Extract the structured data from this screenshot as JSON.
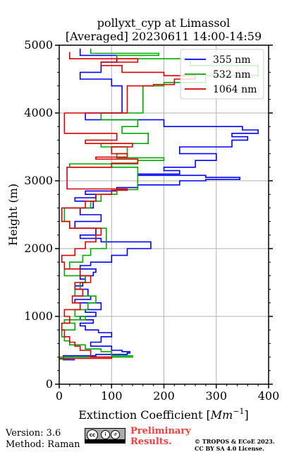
{
  "chart_data": {
    "type": "line",
    "title": "pollyxt_cyp at Limassol",
    "subtitle": "[Averaged] 20230611 14:00-14:59",
    "xlabel": "Extinction Coefficient",
    "xlabel_unit": "Mm",
    "xlabel_unit_exp": "−1",
    "ylabel": "Height (m)",
    "xlim": [
      0,
      400
    ],
    "ylim": [
      0,
      5000
    ],
    "xticks": [
      0,
      100,
      200,
      300,
      400
    ],
    "yticks": [
      0,
      1000,
      2000,
      3000,
      4000,
      5000
    ],
    "grid": true,
    "legend_position": "top-right",
    "series": [
      {
        "name": "355 nm",
        "color": "#0000ff",
        "x": [
          30,
          8,
          70,
          130,
          135,
          120,
          100,
          60,
          80,
          100,
          75,
          50,
          40,
          65,
          40,
          70,
          50,
          80,
          30,
          60,
          55,
          30,
          45,
          50,
          40,
          65,
          70,
          40,
          60,
          100,
          130,
          175,
          80,
          40,
          70,
          30,
          80,
          40,
          65,
          30,
          70,
          50,
          110,
          150,
          230,
          280,
          345,
          280,
          150,
          230,
          200,
          260,
          300,
          230,
          330,
          360,
          330,
          380,
          350,
          200,
          50,
          120,
          100,
          40,
          80,
          110,
          40
        ],
        "y": [
          360,
          420,
          440,
          460,
          480,
          500,
          560,
          620,
          700,
          760,
          800,
          860,
          900,
          950,
          1000,
          1060,
          1100,
          1200,
          1250,
          1300,
          1400,
          1450,
          1500,
          1550,
          1600,
          1650,
          1700,
          1750,
          1800,
          1900,
          2000,
          2100,
          2150,
          2200,
          2300,
          2400,
          2500,
          2600,
          2700,
          2750,
          2800,
          2850,
          2900,
          2940,
          3000,
          3020,
          3050,
          3080,
          3100,
          3150,
          3200,
          3300,
          3400,
          3500,
          3600,
          3650,
          3700,
          3750,
          3800,
          3900,
          4000,
          4400,
          4500,
          4600,
          4750,
          4850,
          4950
        ]
      },
      {
        "name": "532 nm",
        "color": "#00aa00",
        "x": [
          20,
          0,
          140,
          100,
          80,
          50,
          20,
          10,
          5,
          30,
          10,
          50,
          30,
          55,
          70,
          30,
          40,
          50,
          10,
          20,
          45,
          60,
          90,
          20,
          10,
          60,
          80,
          110,
          150,
          20,
          150,
          200,
          110,
          130,
          80,
          170,
          120,
          150,
          80,
          160,
          200,
          280,
          380,
          250,
          110,
          190,
          60
        ],
        "y": [
          370,
          400,
          420,
          480,
          520,
          580,
          640,
          700,
          800,
          900,
          950,
          1000,
          1100,
          1200,
          1300,
          1400,
          1500,
          1600,
          1700,
          1800,
          1900,
          2000,
          2300,
          2400,
          2600,
          2700,
          2800,
          2870,
          3200,
          3250,
          3300,
          3340,
          3400,
          3500,
          3550,
          3700,
          3800,
          3900,
          4000,
          4400,
          4450,
          4550,
          4700,
          4800,
          4850,
          4880,
          4950
        ]
      },
      {
        "name": "1064 nm",
        "color": "#dd0000",
        "x": [
          0,
          100,
          60,
          40,
          30,
          20,
          10,
          5,
          20,
          10,
          40,
          25,
          45,
          30,
          60,
          40,
          10,
          5,
          30,
          50,
          70,
          80,
          20,
          5,
          50,
          70,
          100,
          130,
          15,
          100,
          150,
          70,
          130,
          100,
          140,
          50,
          110,
          10,
          130,
          180,
          220,
          260,
          200,
          120,
          80,
          150,
          20
        ],
        "y": [
          380,
          400,
          500,
          560,
          620,
          700,
          800,
          900,
          1000,
          1100,
          1200,
          1300,
          1400,
          1500,
          1600,
          1700,
          1800,
          1900,
          2000,
          2100,
          2200,
          2300,
          2400,
          2600,
          2700,
          2800,
          2860,
          2880,
          3200,
          3260,
          3320,
          3350,
          3400,
          3500,
          3550,
          3600,
          3700,
          4000,
          4400,
          4420,
          4500,
          4550,
          4600,
          4700,
          4750,
          4800,
          4900
        ]
      }
    ]
  },
  "footer": {
    "version": "Version: 3.6",
    "method": "Method: Raman",
    "preliminary_line1": "Preliminary",
    "preliminary_line2": "Results.",
    "copyright_line1": "© TROPOS & ECoE 2023.",
    "copyright_line2": "CC BY SA 4.0 License.",
    "license_badge": "cc by sa"
  }
}
